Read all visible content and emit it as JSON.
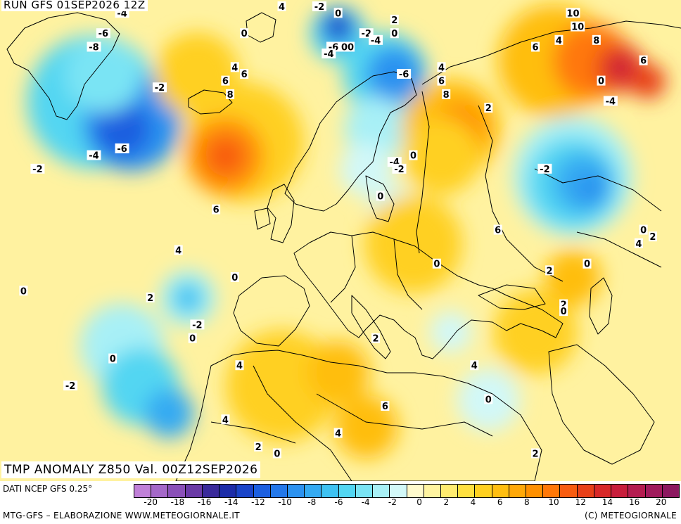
{
  "header": {
    "run_title": "RUN GFS 01SEP2026 12Z",
    "valid_title": "TMP ANOMALY Z850 Val. 00Z12SEP2026"
  },
  "footer": {
    "data_source": "DATI NCEP GFS 0.25°",
    "credits_left": "MTG-GFS – ELABORAZIONE WWW.METEOGIORNALE.IT",
    "credits_right": "(C) METEOGIORNALE"
  },
  "legend": {
    "colors": [
      "#c080d8",
      "#a468c8",
      "#8a50b8",
      "#6a3aa6",
      "#3a2a9a",
      "#1c2ca8",
      "#1a44c8",
      "#1c5fe0",
      "#2478ea",
      "#2c92f0",
      "#34aaf2",
      "#3ec2f2",
      "#52d6f2",
      "#7ae4f4",
      "#a8f0f6",
      "#d2f8f8",
      "#fffacc",
      "#fff4a0",
      "#ffec70",
      "#ffe040",
      "#ffd020",
      "#ffbe10",
      "#ffa808",
      "#ff9000",
      "#ff7808",
      "#f85c10",
      "#e84018",
      "#d82828",
      "#c81e3c",
      "#b41c50",
      "#a01a5c",
      "#8c1860"
    ],
    "ticks": [
      "-20",
      "-18",
      "-16",
      "-14",
      "-12",
      "-10",
      "-8",
      "-6",
      "-4",
      "-2",
      "0",
      "2",
      "4",
      "6",
      "8",
      "10",
      "12",
      "14",
      "16",
      "20"
    ]
  },
  "map": {
    "base_color": "#fff2a0",
    "anomaly_fields": [
      {
        "lon": -40,
        "lat": 66,
        "r": 95,
        "color": "#52d6f2"
      },
      {
        "lon": -32,
        "lat": 63,
        "r": 70,
        "color": "#2c92f0"
      },
      {
        "lon": -34,
        "lat": 62,
        "r": 40,
        "color": "#1c5fe0"
      },
      {
        "lon": -38,
        "lat": 70,
        "r": 55,
        "color": "#7ae4f4"
      },
      {
        "lon": -8,
        "lat": 60,
        "r": 85,
        "color": "#ffd020"
      },
      {
        "lon": -12,
        "lat": 58,
        "r": 55,
        "color": "#ff9000"
      },
      {
        "lon": -12,
        "lat": 58,
        "r": 28,
        "color": "#f85c10"
      },
      {
        "lon": -18,
        "lat": 70,
        "r": 60,
        "color": "#ffd020"
      },
      {
        "lon": 12,
        "lat": 76,
        "r": 40,
        "color": "#52d6f2"
      },
      {
        "lon": 12,
        "lat": 77,
        "r": 26,
        "color": "#2478ea"
      },
      {
        "lon": 12,
        "lat": 77,
        "r": 13,
        "color": "#1c2ca8"
      },
      {
        "lon": 22,
        "lat": 70,
        "r": 60,
        "color": "#52d6f2"
      },
      {
        "lon": 24,
        "lat": 70,
        "r": 40,
        "color": "#2c92f0"
      },
      {
        "lon": 20,
        "lat": 62,
        "r": 45,
        "color": "#a8f0f6"
      },
      {
        "lon": 18,
        "lat": 56,
        "r": 38,
        "color": "#d2f8f8"
      },
      {
        "lon": 24,
        "lat": 50,
        "r": 35,
        "color": "#d2f8f8"
      },
      {
        "lon": 36,
        "lat": 62,
        "r": 70,
        "color": "#ffbe10"
      },
      {
        "lon": 38,
        "lat": 62,
        "r": 38,
        "color": "#ff9000"
      },
      {
        "lon": 34,
        "lat": 58,
        "r": 55,
        "color": "#ffd020"
      },
      {
        "lon": 28,
        "lat": 45,
        "r": 70,
        "color": "#ffd020"
      },
      {
        "lon": 58,
        "lat": 72,
        "r": 80,
        "color": "#ffbe10"
      },
      {
        "lon": 66,
        "lat": 72,
        "r": 55,
        "color": "#ff7808"
      },
      {
        "lon": 72,
        "lat": 71,
        "r": 35,
        "color": "#e84018"
      },
      {
        "lon": 72,
        "lat": 71,
        "r": 18,
        "color": "#c81e3c"
      },
      {
        "lon": 78,
        "lat": 69,
        "r": 25,
        "color": "#e84018"
      },
      {
        "lon": 62,
        "lat": 55,
        "r": 85,
        "color": "#a8f0f6"
      },
      {
        "lon": 62,
        "lat": 54,
        "r": 65,
        "color": "#52d6f2"
      },
      {
        "lon": 64,
        "lat": 54,
        "r": 42,
        "color": "#34aaf2"
      },
      {
        "lon": 66,
        "lat": 53,
        "r": 22,
        "color": "#2c92f0"
      },
      {
        "lon": -20,
        "lat": 37,
        "r": 40,
        "color": "#a8f0f6"
      },
      {
        "lon": -20,
        "lat": 37,
        "r": 24,
        "color": "#52d6f2"
      },
      {
        "lon": -20,
        "lat": 37,
        "r": 12,
        "color": "#34aaf2"
      },
      {
        "lon": -34,
        "lat": 30,
        "r": 60,
        "color": "#a8f0f6"
      },
      {
        "lon": -30,
        "lat": 24,
        "r": 55,
        "color": "#52d6f2"
      },
      {
        "lon": -24,
        "lat": 20,
        "r": 35,
        "color": "#34aaf2"
      },
      {
        "lon": 0,
        "lat": 24,
        "r": 80,
        "color": "#ffd020"
      },
      {
        "lon": 12,
        "lat": 26,
        "r": 45,
        "color": "#ffbe10"
      },
      {
        "lon": 18,
        "lat": 18,
        "r": 45,
        "color": "#ffbe10"
      },
      {
        "lon": 44,
        "lat": 22,
        "r": 45,
        "color": "#d2f8f8"
      },
      {
        "lon": 36,
        "lat": 32,
        "r": 30,
        "color": "#d2f8f8"
      },
      {
        "lon": 54,
        "lat": 32,
        "r": 60,
        "color": "#ffd020"
      },
      {
        "lon": 62,
        "lat": 40,
        "r": 40,
        "color": "#ffbe10"
      }
    ],
    "labels": [
      {
        "lon": -34,
        "lat": 79,
        "text": "-4"
      },
      {
        "lon": -38,
        "lat": 76,
        "text": "-6"
      },
      {
        "lon": -40,
        "lat": 74,
        "text": "-8"
      },
      {
        "lon": -26,
        "lat": 68,
        "text": "-2"
      },
      {
        "lon": -34,
        "lat": 59,
        "text": "-6"
      },
      {
        "lon": -40,
        "lat": 58,
        "text": "-4"
      },
      {
        "lon": -52,
        "lat": 56,
        "text": "-2"
      },
      {
        "lon": -8,
        "lat": 76,
        "text": "0"
      },
      {
        "lon": 0,
        "lat": 80,
        "text": "4"
      },
      {
        "lon": 8,
        "lat": 80,
        "text": "-2"
      },
      {
        "lon": 12,
        "lat": 79,
        "text": "0"
      },
      {
        "lon": -10,
        "lat": 71,
        "text": "4"
      },
      {
        "lon": -8,
        "lat": 70,
        "text": "6"
      },
      {
        "lon": -12,
        "lat": 69,
        "text": "6"
      },
      {
        "lon": -11,
        "lat": 67,
        "text": "8"
      },
      {
        "lon": -14,
        "lat": 50,
        "text": "6"
      },
      {
        "lon": -22,
        "lat": 44,
        "text": "4"
      },
      {
        "lon": -10,
        "lat": 40,
        "text": "0"
      },
      {
        "lon": -28,
        "lat": 37,
        "text": "2"
      },
      {
        "lon": -55,
        "lat": 38,
        "text": "0"
      },
      {
        "lon": -18,
        "lat": 33,
        "text": "-2"
      },
      {
        "lon": -19,
        "lat": 31,
        "text": "0"
      },
      {
        "lon": -36,
        "lat": 28,
        "text": "0"
      },
      {
        "lon": -45,
        "lat": 24,
        "text": "-2"
      },
      {
        "lon": 11,
        "lat": 74,
        "text": "-6"
      },
      {
        "lon": 14,
        "lat": 74,
        "text": "00"
      },
      {
        "lon": 10,
        "lat": 73,
        "text": "-4"
      },
      {
        "lon": 18,
        "lat": 76,
        "text": "-2"
      },
      {
        "lon": 20,
        "lat": 75,
        "text": "-4"
      },
      {
        "lon": 24,
        "lat": 76,
        "text": "0"
      },
      {
        "lon": 24,
        "lat": 78,
        "text": "2"
      },
      {
        "lon": 26,
        "lat": 70,
        "text": "-6"
      },
      {
        "lon": 24,
        "lat": 57,
        "text": "-4"
      },
      {
        "lon": 25,
        "lat": 56,
        "text": "-2"
      },
      {
        "lon": 28,
        "lat": 58,
        "text": "0"
      },
      {
        "lon": 21,
        "lat": 52,
        "text": "0"
      },
      {
        "lon": 34,
        "lat": 71,
        "text": "4"
      },
      {
        "lon": 34,
        "lat": 69,
        "text": "6"
      },
      {
        "lon": 35,
        "lat": 67,
        "text": "8"
      },
      {
        "lon": 44,
        "lat": 65,
        "text": "2"
      },
      {
        "lon": 46,
        "lat": 47,
        "text": "6"
      },
      {
        "lon": 33,
        "lat": 42,
        "text": "0"
      },
      {
        "lon": 54,
        "lat": 74,
        "text": "6"
      },
      {
        "lon": 59,
        "lat": 75,
        "text": "4"
      },
      {
        "lon": 62,
        "lat": 79,
        "text": "10"
      },
      {
        "lon": 63,
        "lat": 77,
        "text": "10"
      },
      {
        "lon": 67,
        "lat": 75,
        "text": "8"
      },
      {
        "lon": 68,
        "lat": 69,
        "text": "0"
      },
      {
        "lon": 70,
        "lat": 66,
        "text": "-4"
      },
      {
        "lon": 56,
        "lat": 56,
        "text": "-2"
      },
      {
        "lon": 77,
        "lat": 72,
        "text": "6"
      },
      {
        "lon": 77,
        "lat": 47,
        "text": "0"
      },
      {
        "lon": 79,
        "lat": 46,
        "text": "2"
      },
      {
        "lon": 76,
        "lat": 45,
        "text": "4"
      },
      {
        "lon": 65,
        "lat": 42,
        "text": "0"
      },
      {
        "lon": 57,
        "lat": 41,
        "text": "2"
      },
      {
        "lon": 60,
        "lat": 36,
        "text": "2"
      },
      {
        "lon": 60,
        "lat": 35,
        "text": "0"
      },
      {
        "lon": 20,
        "lat": 31,
        "text": "2"
      },
      {
        "lon": 41,
        "lat": 27,
        "text": "4"
      },
      {
        "lon": -9,
        "lat": 27,
        "text": "4"
      },
      {
        "lon": 22,
        "lat": 21,
        "text": "6"
      },
      {
        "lon": -12,
        "lat": 19,
        "text": "4"
      },
      {
        "lon": 12,
        "lat": 17,
        "text": "4"
      },
      {
        "lon": 44,
        "lat": 22,
        "text": "0"
      },
      {
        "lon": -5,
        "lat": 15,
        "text": "2"
      },
      {
        "lon": -1,
        "lat": 14,
        "text": "0"
      },
      {
        "lon": 54,
        "lat": 14,
        "text": "2"
      }
    ]
  }
}
